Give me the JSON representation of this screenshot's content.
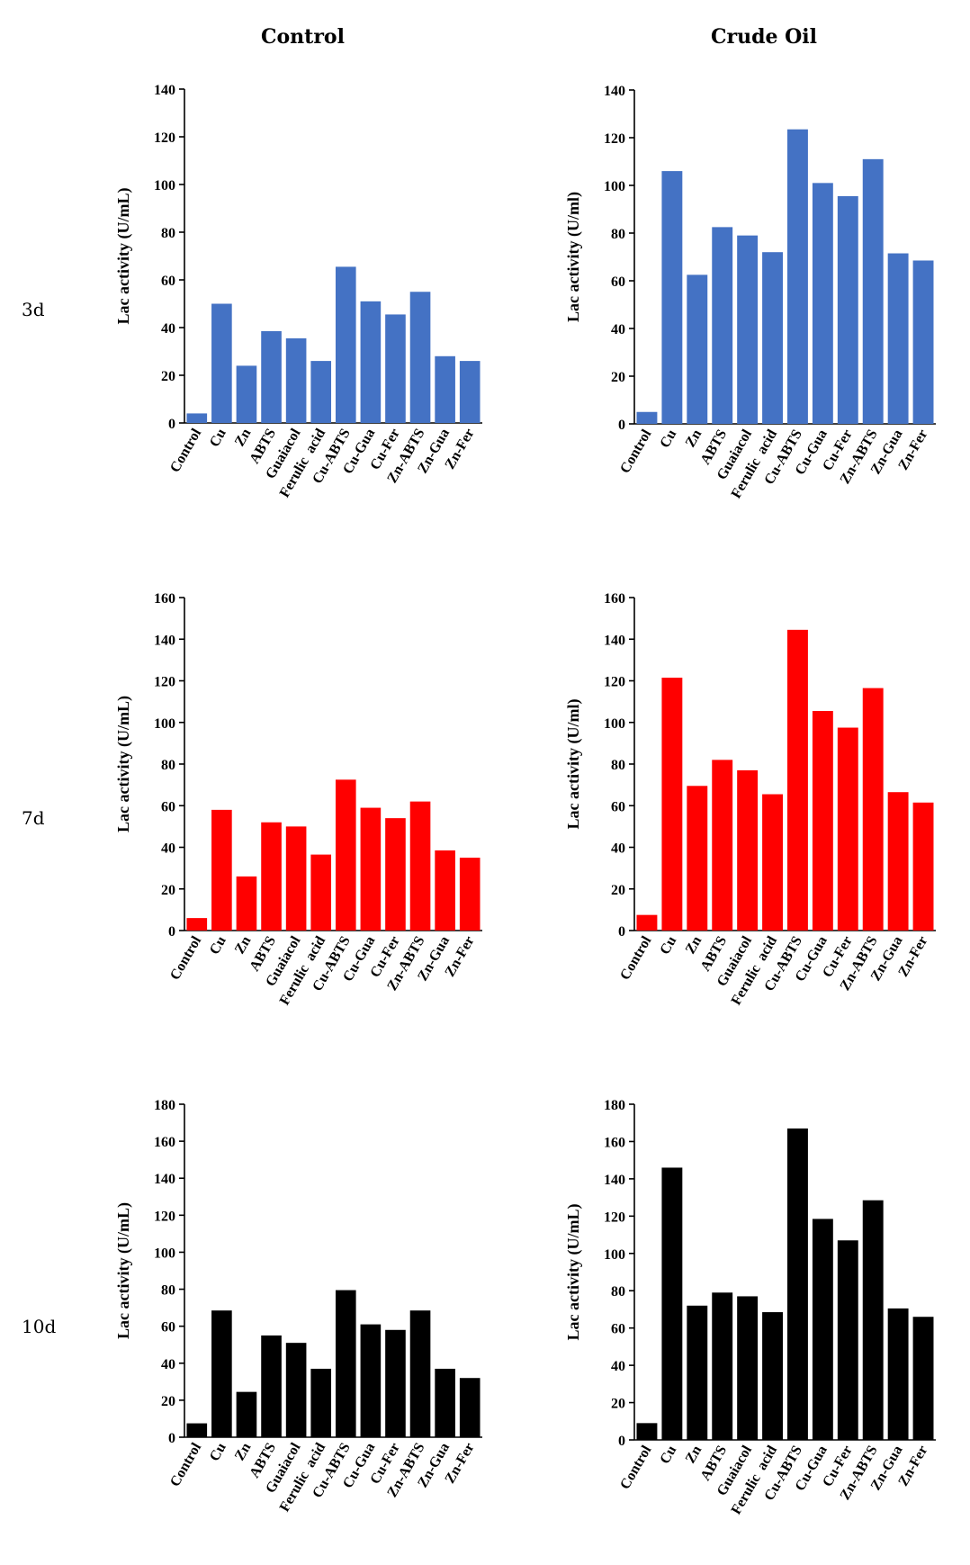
{
  "column_titles": [
    "Control",
    "Crude Oil"
  ],
  "row_labels": [
    "3d",
    "7d",
    "10d"
  ],
  "colors": {
    "3d": "#4472c4",
    "7d": "#ff0000",
    "10d": "#000000"
  },
  "chart_data": [
    {
      "type": "bar",
      "panel": "3d-control",
      "title": "",
      "ylabel": "Lac activity (U/mL)",
      "ylim": [
        0,
        140
      ],
      "yticks": [
        0,
        20,
        40,
        60,
        80,
        100,
        120,
        140
      ],
      "categories": [
        "Control",
        "Cu",
        "Zn",
        "ABTS",
        "Guaiacol",
        "Ferulic  acid",
        "Cu-ABTS",
        "Cu-Gua",
        "Cu-Fer",
        "Zn-ABTS",
        "Zn-Gua",
        "Zn-Fer"
      ],
      "values": [
        4,
        50,
        24,
        38.5,
        35.5,
        26,
        65.5,
        51,
        45.5,
        55,
        28,
        26
      ],
      "color": "#4472c4"
    },
    {
      "type": "bar",
      "panel": "3d-crude-oil",
      "title": "",
      "ylabel": "Lac activity (U/ml)",
      "ylim": [
        0,
        140
      ],
      "yticks": [
        0,
        20,
        40,
        60,
        80,
        100,
        120,
        140
      ],
      "categories": [
        "Control",
        "Cu",
        "Zn",
        "ABTS",
        "Guaiacol",
        "Ferulic  acid",
        "Cu-ABTS",
        "Cu-Gua",
        "Cu-Fer",
        "Zn-ABTS",
        "Zn-Gua",
        "Zn-Fer"
      ],
      "values": [
        5,
        106,
        62.5,
        82.5,
        79,
        72,
        123.5,
        101,
        95.5,
        111,
        71.5,
        68.5
      ],
      "color": "#4472c4"
    },
    {
      "type": "bar",
      "panel": "7d-control",
      "title": "",
      "ylabel": "Lac activity (U/mL)",
      "ylim": [
        0,
        160
      ],
      "yticks": [
        0,
        20,
        40,
        60,
        80,
        100,
        120,
        140,
        160
      ],
      "categories": [
        "Control",
        "Cu",
        "Zn",
        "ABTS",
        "Guaiacol",
        "Ferulic  acid",
        "Cu-ABTS",
        "Cu-Gua",
        "Cu-Fer",
        "Zn-ABTS",
        "Zn-Gua",
        "Zn-Fer"
      ],
      "values": [
        6,
        58,
        26,
        52,
        50,
        36.5,
        72.5,
        59,
        54,
        62,
        38.5,
        35
      ],
      "color": "#ff0000"
    },
    {
      "type": "bar",
      "panel": "7d-crude-oil",
      "title": "",
      "ylabel": "Lac activity (U/ml)",
      "ylim": [
        0,
        160
      ],
      "yticks": [
        0,
        20,
        40,
        60,
        80,
        100,
        120,
        140,
        160
      ],
      "categories": [
        "Control",
        "Cu",
        "Zn",
        "ABTS",
        "Guaiacol",
        "Ferulic  acid",
        "Cu-ABTS",
        "Cu-Gua",
        "Cu-Fer",
        "Zn-ABTS",
        "Zn-Gua",
        "Zn-Fer"
      ],
      "values": [
        7.5,
        121.5,
        69.5,
        82,
        77,
        65.5,
        144.5,
        105.5,
        97.5,
        116.5,
        66.5,
        61.5
      ],
      "color": "#ff0000"
    },
    {
      "type": "bar",
      "panel": "10d-control",
      "title": "",
      "ylabel": "Lac activity (U/mL)",
      "ylim": [
        0,
        180
      ],
      "yticks": [
        0,
        20,
        40,
        60,
        80,
        100,
        120,
        140,
        160,
        180
      ],
      "categories": [
        "Control",
        "Cu",
        "Zn",
        "ABTS",
        "Guaiacol",
        "Ferulic  acid",
        "Cu-ABTS",
        "Cu-Gua",
        "Cu-Fer",
        "Zn-ABTS",
        "Zn-Gua",
        "Zn-Fer"
      ],
      "values": [
        7.5,
        68.5,
        24.5,
        55,
        51,
        37,
        79.5,
        61,
        58,
        68.5,
        37,
        32
      ],
      "color": "#000000"
    },
    {
      "type": "bar",
      "panel": "10d-crude-oil",
      "title": "",
      "ylabel": "Lac activity (U/mL)",
      "ylim": [
        0,
        180
      ],
      "yticks": [
        0,
        20,
        40,
        60,
        80,
        100,
        120,
        140,
        160,
        180
      ],
      "categories": [
        "Control",
        "Cu",
        "Zn",
        "ABTS",
        "Guaiacol",
        "Ferulic  acid",
        "Cu-ABTS",
        "Cu-Gua",
        "Cu-Fer",
        "Zn-ABTS",
        "Zn-Gua",
        "Zn-Fer"
      ],
      "values": [
        9,
        146,
        72,
        79,
        77,
        68.5,
        167,
        118.5,
        107,
        128.5,
        70.5,
        66
      ],
      "color": "#000000"
    }
  ]
}
